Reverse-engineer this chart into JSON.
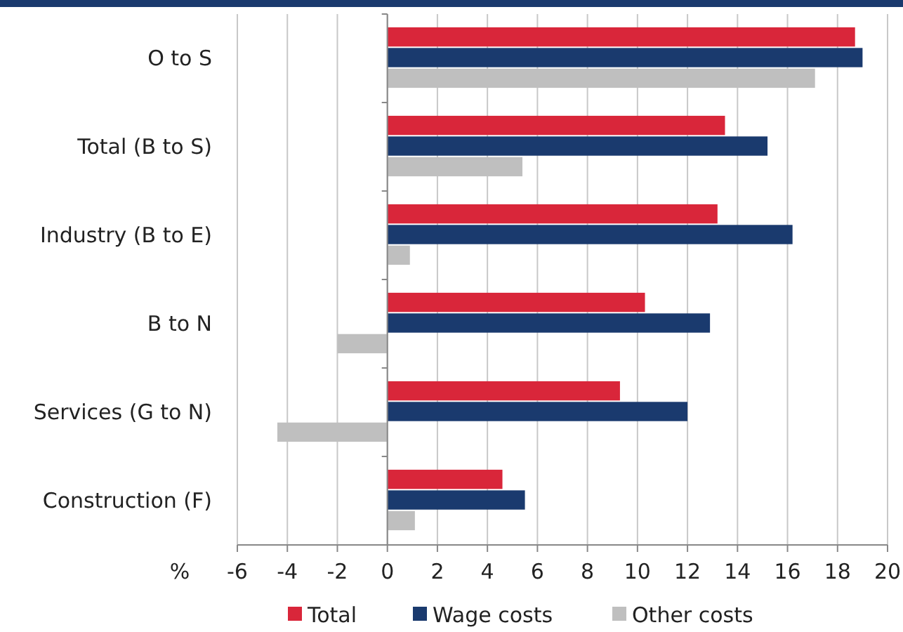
{
  "chart_data": {
    "type": "bar",
    "orientation": "horizontal",
    "xlabel": "%",
    "categories": [
      "O to S",
      "Total (B to S)",
      "Industry (B to E)",
      "B to N",
      "Services (G to N)",
      "Construction (F)"
    ],
    "series": [
      {
        "name": "Total",
        "color": "#d9263a",
        "values": [
          18.7,
          13.5,
          13.2,
          10.3,
          9.3,
          4.6
        ]
      },
      {
        "name": "Wage costs",
        "color": "#1a3a6e",
        "values": [
          19.0,
          15.2,
          16.2,
          12.9,
          12.0,
          5.5
        ]
      },
      {
        "name": "Other costs",
        "color": "#bfbfbf",
        "values": [
          17.1,
          5.4,
          0.9,
          -2.0,
          -4.4,
          1.1
        ]
      }
    ],
    "xlim": [
      -6,
      20
    ],
    "xticks": [
      -6,
      -4,
      -2,
      0,
      2,
      4,
      6,
      8,
      10,
      12,
      14,
      16,
      18,
      20
    ],
    "grid": "x",
    "legend": "bottom"
  }
}
